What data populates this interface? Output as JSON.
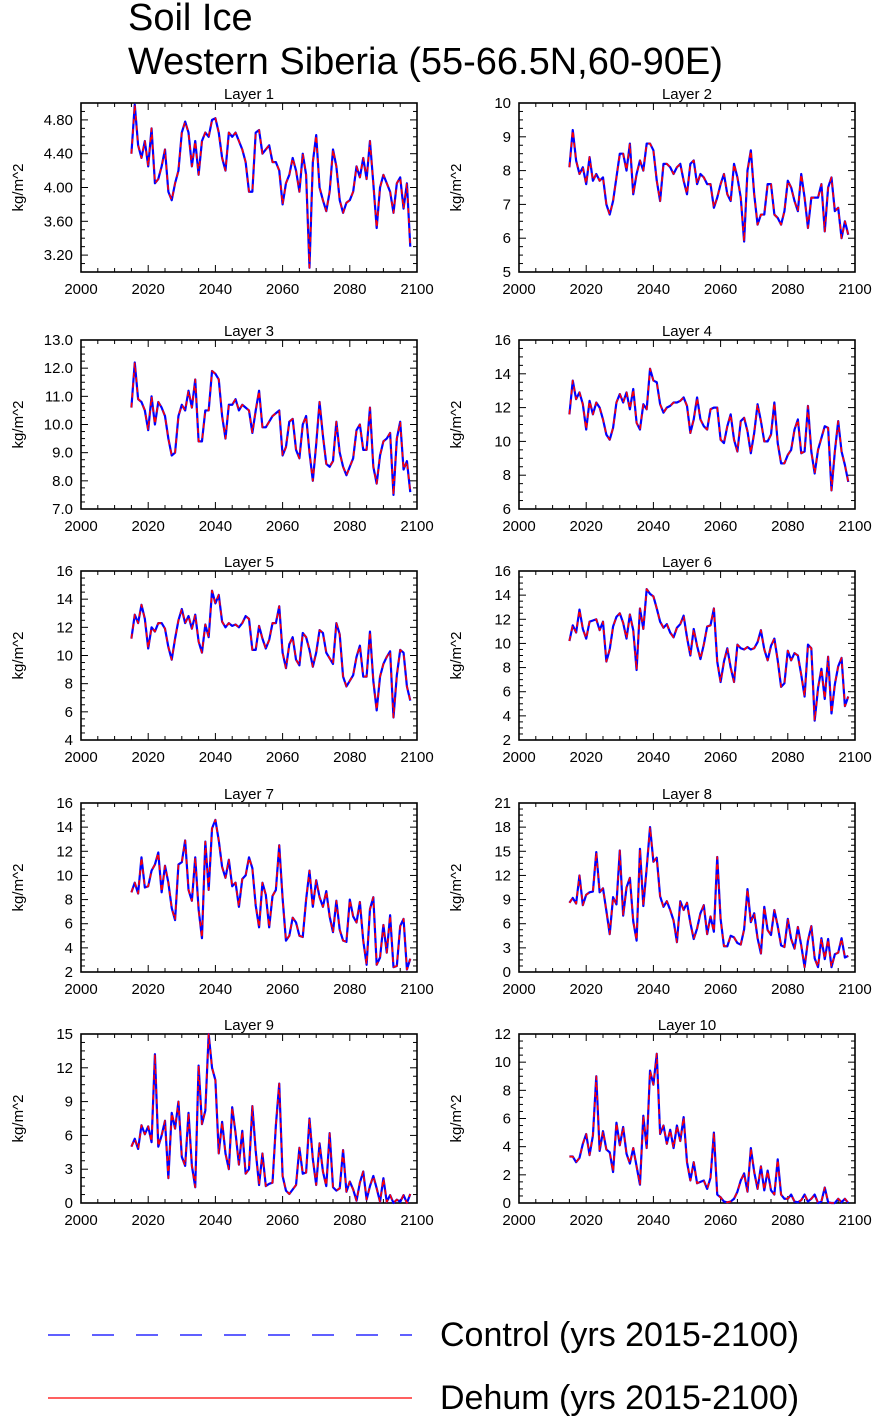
{
  "title": {
    "line1": "Soil Ice",
    "line2": "Western Siberia (55-66.5N,60-90E)"
  },
  "legend": [
    {
      "label": "Control (yrs 2015-2100)",
      "color": "#0000ff",
      "style": "dashed"
    },
    {
      "label": "Dehum (yrs 2015-2100)",
      "color": "#ff0000",
      "style": "solid"
    }
  ],
  "chart_data": [
    {
      "type": "line",
      "title": "Layer 1",
      "ylabel": "kg/m^2",
      "xlim": [
        2000,
        2100
      ],
      "xticks": [
        2000,
        2020,
        2040,
        2060,
        2080,
        2100
      ],
      "ylim": [
        3.0,
        5.0
      ],
      "yticks": [
        "3.20",
        "3.60",
        "4.00",
        "4.40",
        "4.80"
      ],
      "x_start": 2015,
      "values": [
        4.4,
        4.98,
        4.5,
        4.35,
        4.55,
        4.25,
        4.7,
        4.05,
        4.1,
        4.25,
        4.45,
        3.95,
        3.85,
        4.05,
        4.2,
        4.65,
        4.78,
        4.65,
        4.25,
        4.55,
        4.15,
        4.55,
        4.65,
        4.6,
        4.8,
        4.82,
        4.65,
        4.35,
        4.2,
        4.65,
        4.6,
        4.65,
        4.55,
        4.45,
        4.3,
        3.95,
        3.95,
        4.65,
        4.68,
        4.4,
        4.45,
        4.5,
        4.3,
        4.3,
        4.2,
        3.8,
        4.05,
        4.15,
        4.35,
        4.2,
        3.95,
        4.4,
        4.15,
        3.05,
        4.3,
        4.62,
        4.0,
        3.85,
        3.72,
        3.95,
        4.45,
        4.25,
        3.85,
        3.7,
        3.82,
        3.85,
        3.95,
        4.25,
        4.12,
        4.35,
        4.1,
        4.55,
        4.05,
        3.52,
        4.0,
        4.15,
        4.05,
        3.95,
        3.7,
        4.05,
        4.12,
        3.75,
        4.05,
        3.3
      ]
    },
    {
      "type": "line",
      "title": "Layer 2",
      "ylabel": "kg/m^2",
      "xlim": [
        2000,
        2100
      ],
      "xticks": [
        2000,
        2020,
        2040,
        2060,
        2080,
        2100
      ],
      "ylim": [
        5,
        10
      ],
      "yticks": [
        "5",
        "6",
        "7",
        "8",
        "9",
        "10"
      ],
      "x_start": 2015,
      "values": [
        8.1,
        9.2,
        8.3,
        7.9,
        8.1,
        7.6,
        8.4,
        7.7,
        7.9,
        7.7,
        7.8,
        7.0,
        6.7,
        7.1,
        7.8,
        8.5,
        8.5,
        8.0,
        8.8,
        7.3,
        7.9,
        8.3,
        8.0,
        8.8,
        8.8,
        8.6,
        7.7,
        7.1,
        8.2,
        8.2,
        8.1,
        7.9,
        8.1,
        8.2,
        7.7,
        7.3,
        8.2,
        8.3,
        7.6,
        7.9,
        7.8,
        7.6,
        7.6,
        6.9,
        7.2,
        7.6,
        7.9,
        7.3,
        7.1,
        8.2,
        7.8,
        7.2,
        5.9,
        8.0,
        8.6,
        7.3,
        6.4,
        6.7,
        6.7,
        7.6,
        7.6,
        6.7,
        6.6,
        6.4,
        6.8,
        7.7,
        7.5,
        7.1,
        6.8,
        7.9,
        7.2,
        6.3,
        7.2,
        7.2,
        7.2,
        7.6,
        6.2,
        7.5,
        7.8,
        6.8,
        6.9,
        6.0,
        6.5,
        6.1
      ]
    },
    {
      "type": "line",
      "title": "Layer 3",
      "ylabel": "kg/m^2",
      "xlim": [
        2000,
        2100
      ],
      "xticks": [
        2000,
        2020,
        2040,
        2060,
        2080,
        2100
      ],
      "ylim": [
        7.0,
        13.0
      ],
      "yticks": [
        "7.0",
        "8.0",
        "9.0",
        "10.0",
        "11.0",
        "12.0",
        "13.0"
      ],
      "x_start": 2015,
      "values": [
        10.6,
        12.2,
        10.9,
        10.8,
        10.5,
        9.8,
        11.0,
        10.0,
        10.8,
        10.6,
        10.3,
        9.5,
        8.9,
        9.0,
        10.3,
        10.7,
        10.5,
        11.2,
        10.6,
        11.6,
        9.4,
        9.4,
        10.5,
        10.5,
        11.9,
        11.8,
        11.6,
        10.3,
        9.5,
        10.7,
        10.7,
        10.9,
        10.5,
        10.7,
        10.6,
        10.5,
        9.7,
        10.5,
        11.2,
        9.9,
        9.9,
        10.1,
        10.3,
        10.4,
        10.5,
        8.9,
        9.2,
        10.1,
        10.2,
        9.1,
        8.8,
        10.0,
        10.3,
        9.0,
        8.0,
        9.3,
        10.8,
        9.6,
        8.6,
        8.5,
        8.7,
        10.1,
        9.0,
        8.5,
        8.2,
        8.5,
        8.8,
        9.8,
        10.0,
        9.1,
        9.1,
        10.6,
        8.5,
        7.9,
        8.9,
        9.4,
        9.5,
        9.7,
        7.5,
        9.5,
        10.1,
        8.4,
        8.7,
        7.6
      ]
    },
    {
      "type": "line",
      "title": "Layer 4",
      "ylabel": "kg/m^2",
      "xlim": [
        2000,
        2100
      ],
      "xticks": [
        2000,
        2020,
        2040,
        2060,
        2080,
        2100
      ],
      "ylim": [
        6,
        16
      ],
      "yticks": [
        "6",
        "8",
        "10",
        "12",
        "14",
        "16"
      ],
      "x_start": 2015,
      "values": [
        11.6,
        13.6,
        12.5,
        12.9,
        12.2,
        10.7,
        12.4,
        11.6,
        12.3,
        12.0,
        11.3,
        10.4,
        10.1,
        10.8,
        12.3,
        12.8,
        12.3,
        12.9,
        11.9,
        13.1,
        11.1,
        10.7,
        12.2,
        11.9,
        14.3,
        13.6,
        13.5,
        12.2,
        11.7,
        12.0,
        12.1,
        12.3,
        12.3,
        12.4,
        12.6,
        12.1,
        10.5,
        11.3,
        12.6,
        11.3,
        10.9,
        10.7,
        11.9,
        12.0,
        12.0,
        10.1,
        9.9,
        10.9,
        11.6,
        10.1,
        9.4,
        11.2,
        11.4,
        10.6,
        9.3,
        10.5,
        12.2,
        11.2,
        10.0,
        10.0,
        10.4,
        12.3,
        9.9,
        8.7,
        8.7,
        9.2,
        9.5,
        10.7,
        11.3,
        9.3,
        9.4,
        12.1,
        9.4,
        8.1,
        9.5,
        10.2,
        10.9,
        10.8,
        7.1,
        9.4,
        11.2,
        9.4,
        8.6,
        7.6
      ]
    },
    {
      "type": "line",
      "title": "Layer 5",
      "ylabel": "kg/m^2",
      "xlim": [
        2000,
        2100
      ],
      "xticks": [
        2000,
        2020,
        2040,
        2060,
        2080,
        2100
      ],
      "ylim": [
        4,
        16
      ],
      "yticks": [
        "4",
        "6",
        "8",
        "10",
        "12",
        "14",
        "16"
      ],
      "x_start": 2015,
      "values": [
        11.2,
        12.9,
        12.3,
        13.6,
        12.6,
        10.5,
        12.0,
        11.7,
        12.3,
        12.3,
        11.9,
        10.6,
        9.7,
        11.2,
        12.5,
        13.3,
        12.3,
        12.8,
        11.9,
        12.9,
        11.0,
        10.2,
        12.2,
        11.3,
        14.6,
        13.7,
        14.3,
        12.4,
        12.0,
        12.3,
        12.1,
        12.2,
        12.0,
        12.3,
        12.8,
        12.6,
        10.4,
        10.4,
        12.1,
        11.2,
        10.5,
        11.1,
        12.3,
        12.3,
        13.5,
        10.2,
        9.1,
        10.8,
        11.3,
        9.7,
        9.3,
        11.6,
        11.3,
        10.4,
        9.2,
        10.2,
        11.8,
        11.6,
        10.2,
        9.8,
        9.4,
        12.3,
        11.5,
        8.5,
        7.8,
        8.2,
        8.6,
        9.9,
        10.7,
        8.5,
        8.5,
        11.7,
        8.2,
        6.1,
        8.5,
        9.4,
        9.9,
        10.3,
        5.6,
        8.6,
        10.4,
        10.2,
        7.8,
        6.8
      ]
    },
    {
      "type": "line",
      "title": "Layer 6",
      "ylabel": "kg/m^2",
      "xlim": [
        2000,
        2100
      ],
      "xticks": [
        2000,
        2020,
        2040,
        2060,
        2080,
        2100
      ],
      "ylim": [
        2,
        16
      ],
      "yticks": [
        "2",
        "4",
        "6",
        "8",
        "10",
        "12",
        "14",
        "16"
      ],
      "x_start": 2015,
      "values": [
        10.2,
        11.5,
        10.9,
        12.8,
        11.2,
        10.4,
        11.8,
        11.9,
        12.0,
        11.1,
        11.8,
        8.5,
        9.5,
        11.4,
        12.2,
        12.5,
        11.7,
        10.4,
        12.4,
        11.1,
        7.8,
        12.9,
        11.2,
        14.5,
        14.1,
        13.9,
        12.9,
        11.8,
        11.3,
        11.6,
        10.9,
        10.5,
        11.3,
        11.6,
        12.3,
        10.5,
        9.0,
        11.2,
        9.8,
        8.7,
        9.9,
        11.4,
        11.5,
        12.9,
        8.5,
        6.8,
        8.5,
        9.6,
        8.0,
        6.8,
        9.9,
        9.6,
        9.5,
        9.7,
        9.5,
        9.6,
        10.1,
        11.1,
        9.5,
        8.6,
        9.8,
        10.4,
        8.6,
        6.4,
        6.7,
        9.4,
        8.6,
        9.2,
        9.0,
        7.4,
        5.6,
        9.9,
        9.6,
        3.6,
        6.3,
        7.9,
        5.4,
        8.9,
        4.2,
        6.6,
        8.1,
        8.8,
        4.8,
        5.6
      ]
    },
    {
      "type": "line",
      "title": "Layer 7",
      "ylabel": "kg/m^2",
      "xlim": [
        2000,
        2100
      ],
      "xticks": [
        2000,
        2020,
        2040,
        2060,
        2080,
        2100
      ],
      "ylim": [
        2,
        16
      ],
      "yticks": [
        "2",
        "4",
        "6",
        "8",
        "10",
        "12",
        "14",
        "16"
      ],
      "x_start": 2015,
      "values": [
        8.6,
        9.4,
        8.5,
        11.5,
        9.0,
        9.1,
        10.4,
        10.9,
        11.9,
        8.6,
        10.8,
        9.4,
        7.3,
        6.3,
        10.9,
        11.1,
        12.9,
        8.8,
        7.9,
        11.5,
        7.2,
        4.8,
        12.8,
        8.8,
        13.9,
        14.6,
        12.9,
        10.7,
        9.8,
        11.3,
        9.1,
        9.4,
        7.4,
        9.7,
        10.0,
        11.5,
        10.6,
        7.5,
        5.7,
        9.4,
        8.4,
        5.7,
        8.3,
        8.8,
        12.5,
        8.1,
        4.6,
        5.0,
        6.5,
        6.1,
        5.0,
        4.9,
        8.0,
        10.4,
        7.4,
        9.6,
        8.2,
        7.4,
        8.7,
        6.6,
        5.3,
        7.9,
        5.5,
        4.6,
        4.5,
        8.0,
        6.6,
        6.1,
        7.8,
        4.6,
        2.6,
        7.2,
        8.2,
        2.6,
        3.2,
        5.9,
        3.6,
        6.7,
        2.4,
        2.5,
        5.8,
        6.4,
        2.2,
        3.1
      ]
    },
    {
      "type": "line",
      "title": "Layer 8",
      "ylabel": "kg/m^2",
      "xlim": [
        2000,
        2100
      ],
      "xticks": [
        2000,
        2020,
        2040,
        2060,
        2080,
        2100
      ],
      "ylim": [
        0,
        21
      ],
      "yticks": [
        "0",
        "3",
        "6",
        "9",
        "12",
        "15",
        "18",
        "21"
      ],
      "x_start": 2015,
      "values": [
        8.6,
        9.2,
        8.5,
        12.0,
        8.3,
        9.6,
        9.9,
        10.0,
        14.9,
        9.9,
        10.4,
        7.6,
        4.7,
        9.3,
        8.4,
        15.1,
        7.0,
        10.5,
        11.7,
        6.3,
        3.9,
        15.3,
        8.2,
        12.9,
        18.0,
        13.7,
        14.2,
        9.4,
        8.1,
        8.8,
        7.7,
        6.4,
        3.7,
        8.8,
        7.7,
        8.6,
        6.1,
        4.1,
        5.4,
        7.3,
        8.3,
        4.7,
        6.9,
        5.0,
        14.3,
        6.6,
        3.2,
        3.2,
        4.5,
        4.3,
        3.6,
        3.4,
        5.3,
        10.3,
        6.2,
        7.3,
        4.2,
        2.3,
        8.1,
        5.2,
        4.6,
        7.7,
        5.7,
        3.3,
        3.1,
        6.6,
        4.1,
        2.9,
        5.6,
        3.3,
        0.6,
        3.9,
        5.7,
        1.7,
        0.6,
        4.2,
        1.6,
        4.1,
        0.6,
        2.2,
        2.4,
        4.2,
        1.8,
        2.0
      ]
    },
    {
      "type": "line",
      "title": "Layer 9",
      "ylabel": "kg/m^2",
      "xlim": [
        2000,
        2100
      ],
      "xticks": [
        2000,
        2020,
        2040,
        2060,
        2080,
        2100
      ],
      "ylim": [
        0,
        15
      ],
      "yticks": [
        "0",
        "3",
        "6",
        "9",
        "12",
        "15"
      ],
      "x_start": 2015,
      "values": [
        5.0,
        5.7,
        4.8,
        6.9,
        6.1,
        6.8,
        5.4,
        13.2,
        5.0,
        6.0,
        7.3,
        2.2,
        8.0,
        6.6,
        9.0,
        4.1,
        3.3,
        8.0,
        3.3,
        1.4,
        12.2,
        7.0,
        8.2,
        15.0,
        12.0,
        10.9,
        4.4,
        7.2,
        4.4,
        3.0,
        8.5,
        6.2,
        3.4,
        6.4,
        2.6,
        3.0,
        8.6,
        4.6,
        1.6,
        4.4,
        1.5,
        1.7,
        1.8,
        6.9,
        10.6,
        2.4,
        1.1,
        0.8,
        1.2,
        1.6,
        4.9,
        2.6,
        2.7,
        7.5,
        3.9,
        1.6,
        5.3,
        2.8,
        1.5,
        6.2,
        1.4,
        1.1,
        1.3,
        4.7,
        1.0,
        1.9,
        1.2,
        0.2,
        1.8,
        2.8,
        0.3,
        1.5,
        2.4,
        1.3,
        0.1,
        2.2,
        0.1,
        0.7,
        0.0,
        0.3,
        0.1,
        0.7,
        0.0,
        0.8
      ]
    },
    {
      "type": "line",
      "title": "Layer 10",
      "ylabel": "kg/m^2",
      "xlim": [
        2000,
        2100
      ],
      "xticks": [
        2000,
        2020,
        2040,
        2060,
        2080,
        2100
      ],
      "ylim": [
        0,
        12
      ],
      "yticks": [
        "0",
        "2",
        "4",
        "6",
        "8",
        "10",
        "12"
      ],
      "x_start": 2015,
      "values": [
        3.3,
        3.3,
        2.9,
        3.2,
        4.2,
        4.9,
        3.4,
        4.8,
        9.0,
        3.7,
        5.1,
        3.8,
        3.6,
        2.2,
        5.7,
        4.1,
        5.4,
        3.5,
        2.8,
        3.9,
        2.6,
        1.3,
        6.2,
        3.9,
        9.4,
        8.4,
        10.6,
        4.9,
        5.5,
        4.2,
        5.2,
        3.9,
        5.5,
        4.4,
        6.1,
        2.9,
        1.6,
        2.9,
        1.4,
        1.5,
        1.6,
        1.0,
        1.8,
        5.0,
        0.6,
        0.4,
        0.1,
        0.05,
        0.1,
        0.3,
        0.8,
        1.6,
        2.1,
        0.8,
        3.9,
        2.2,
        1.0,
        2.6,
        0.9,
        2.3,
        0.9,
        0.6,
        3.1,
        0.6,
        0.3,
        0.3,
        0.6,
        0.1,
        0.05,
        0.2,
        0.6,
        0.1,
        0.3,
        0.6,
        0.0,
        0.1,
        1.1,
        0.05,
        0.0,
        0.0,
        0.3,
        0.05,
        0.3,
        0.0
      ]
    }
  ]
}
